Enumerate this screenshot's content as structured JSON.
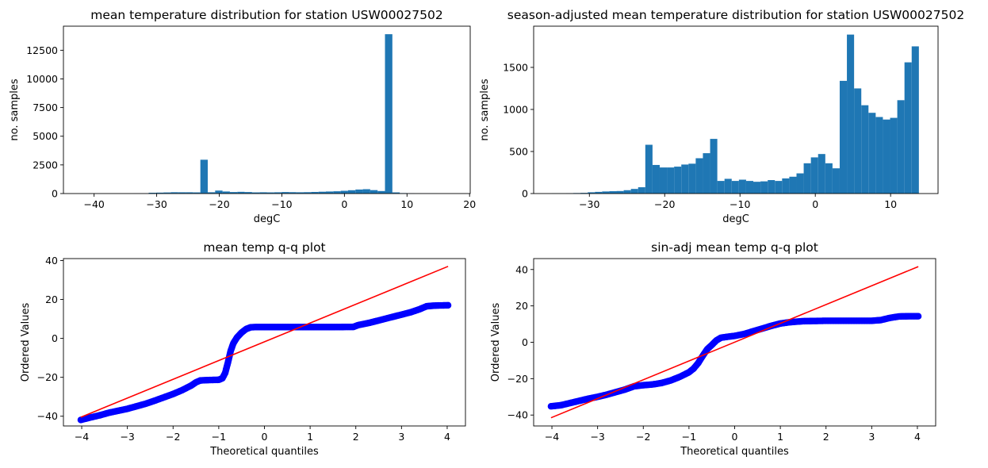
{
  "chart_data": [
    {
      "type": "bar",
      "title": "mean temperature distribution for station USW00027502",
      "xlabel": "degC",
      "ylabel": "no. samples",
      "xlim": [
        -44.9,
        20.1
      ],
      "ylim": [
        0,
        14600
      ],
      "xticks": [
        -40,
        -30,
        -20,
        -10,
        0,
        10,
        20
      ],
      "yticks": [
        0,
        2500,
        5000,
        7500,
        10000,
        12500
      ],
      "bin_start": -41.9,
      "bin_width": 1.18,
      "values": [
        4,
        0,
        1,
        2,
        2,
        3,
        3,
        5,
        6,
        70,
        80,
        95,
        115,
        110,
        110,
        100,
        2950,
        110,
        260,
        180,
        130,
        150,
        130,
        100,
        110,
        100,
        110,
        130,
        120,
        110,
        120,
        140,
        160,
        180,
        200,
        240,
        290,
        350,
        380,
        300,
        220,
        13900,
        100,
        40,
        20,
        10,
        6,
        4,
        2,
        1
      ],
      "color": "#1f77b4"
    },
    {
      "type": "bar",
      "title": "season-adjusted mean temperature distribution for station USW00027502",
      "xlabel": "degC",
      "ylabel": "no. samples",
      "xlim": [
        -37.4,
        16.3
      ],
      "ylim": [
        0,
        1990
      ],
      "xticks": [
        -30,
        -20,
        -10,
        0,
        10
      ],
      "yticks": [
        0,
        500,
        1000,
        1500
      ],
      "bin_start": -35.0,
      "bin_width": 0.956,
      "values": [
        2,
        2,
        4,
        6,
        8,
        15,
        20,
        25,
        28,
        30,
        40,
        55,
        75,
        580,
        340,
        310,
        310,
        320,
        345,
        355,
        420,
        480,
        650,
        150,
        175,
        150,
        165,
        150,
        140,
        145,
        160,
        150,
        180,
        200,
        240,
        360,
        430,
        470,
        360,
        300,
        1340,
        1890,
        1250,
        1050,
        960,
        910,
        880,
        900,
        1110,
        1560,
        1750
      ],
      "color": "#1f77b4"
    },
    {
      "type": "scatter",
      "title": "mean temp q-q plot",
      "xlabel": "Theoretical quantiles",
      "ylabel": "Ordered Values",
      "xlim": [
        -4.4,
        4.4
      ],
      "ylim": [
        -45,
        41
      ],
      "xticks": [
        -4,
        -3,
        -2,
        -1,
        0,
        1,
        2,
        3,
        4
      ],
      "yticks": [
        -40,
        -20,
        0,
        20,
        40
      ],
      "series": [
        {
          "points": [
            [
              -4.02,
              -41.9
            ],
            [
              -3.8,
              -40.6
            ],
            [
              -3.6,
              -39.5
            ],
            [
              -3.4,
              -38.2
            ],
            [
              -3.2,
              -37.2
            ],
            [
              -3.0,
              -36.2
            ],
            [
              -2.8,
              -34.9
            ],
            [
              -2.6,
              -33.6
            ],
            [
              -2.4,
              -32.0
            ],
            [
              -2.2,
              -30.3
            ],
            [
              -2.0,
              -28.6
            ],
            [
              -1.8,
              -26.6
            ],
            [
              -1.6,
              -24.2
            ],
            [
              -1.5,
              -22.6
            ],
            [
              -1.4,
              -21.6
            ],
            [
              -1.2,
              -21.4
            ],
            [
              -1.0,
              -21.3
            ],
            [
              -0.92,
              -20.5
            ],
            [
              -0.86,
              -17.8
            ],
            [
              -0.8,
              -12.5
            ],
            [
              -0.74,
              -6.5
            ],
            [
              -0.68,
              -2.5
            ],
            [
              -0.6,
              0.5
            ],
            [
              -0.5,
              3.0
            ],
            [
              -0.4,
              4.8
            ],
            [
              -0.3,
              5.7
            ],
            [
              -0.2,
              5.8
            ],
            [
              0.0,
              5.8
            ],
            [
              0.5,
              5.8
            ],
            [
              1.0,
              5.8
            ],
            [
              1.5,
              5.8
            ],
            [
              1.95,
              5.9
            ],
            [
              2.05,
              6.8
            ],
            [
              2.3,
              8.0
            ],
            [
              2.6,
              9.8
            ],
            [
              2.9,
              11.6
            ],
            [
              3.2,
              13.4
            ],
            [
              3.4,
              15.0
            ],
            [
              3.55,
              16.5
            ],
            [
              3.7,
              16.8
            ],
            [
              3.8,
              16.9
            ],
            [
              4.02,
              17.0
            ]
          ],
          "color": "#0000ff"
        },
        {
          "type": "line",
          "points": [
            [
              -4.02,
              -40.5
            ],
            [
              4.02,
              37.0
            ]
          ],
          "color": "#ff0000"
        }
      ]
    },
    {
      "type": "scatter",
      "title": "sin-adj mean temp q-q plot",
      "xlabel": "Theoretical quantiles",
      "ylabel": "Ordered Values",
      "xlim": [
        -4.4,
        4.4
      ],
      "ylim": [
        -46,
        46
      ],
      "xticks": [
        -4,
        -3,
        -2,
        -1,
        0,
        1,
        2,
        3,
        4
      ],
      "yticks": [
        -40,
        -20,
        0,
        20,
        40
      ],
      "series": [
        {
          "points": [
            [
              -4.02,
              -35.2
            ],
            [
              -3.8,
              -34.6
            ],
            [
              -3.6,
              -33.4
            ],
            [
              -3.4,
              -32.2
            ],
            [
              -3.2,
              -31.0
            ],
            [
              -3.0,
              -30.0
            ],
            [
              -2.8,
              -28.8
            ],
            [
              -2.6,
              -27.4
            ],
            [
              -2.4,
              -26.0
            ],
            [
              -2.2,
              -24.2
            ],
            [
              -2.0,
              -23.6
            ],
            [
              -1.8,
              -23.2
            ],
            [
              -1.6,
              -22.4
            ],
            [
              -1.4,
              -21.0
            ],
            [
              -1.2,
              -19.0
            ],
            [
              -1.0,
              -16.5
            ],
            [
              -0.9,
              -14.5
            ],
            [
              -0.8,
              -11.5
            ],
            [
              -0.7,
              -7.5
            ],
            [
              -0.6,
              -3.8
            ],
            [
              -0.5,
              -1.5
            ],
            [
              -0.4,
              1.0
            ],
            [
              -0.3,
              2.5
            ],
            [
              -0.1,
              3.2
            ],
            [
              0.0,
              3.5
            ],
            [
              0.2,
              4.5
            ],
            [
              0.4,
              6.0
            ],
            [
              0.6,
              7.5
            ],
            [
              0.8,
              9.0
            ],
            [
              1.0,
              10.3
            ],
            [
              1.2,
              11.0
            ],
            [
              1.5,
              11.6
            ],
            [
              2.0,
              11.8
            ],
            [
              2.5,
              11.8
            ],
            [
              3.0,
              11.8
            ],
            [
              3.2,
              12.2
            ],
            [
              3.4,
              13.4
            ],
            [
              3.6,
              14.2
            ],
            [
              3.8,
              14.3
            ],
            [
              4.02,
              14.3
            ]
          ],
          "color": "#0000ff"
        },
        {
          "type": "line",
          "points": [
            [
              -4.02,
              -41.5
            ],
            [
              4.02,
              41.6
            ]
          ],
          "color": "#ff0000"
        }
      ]
    }
  ]
}
